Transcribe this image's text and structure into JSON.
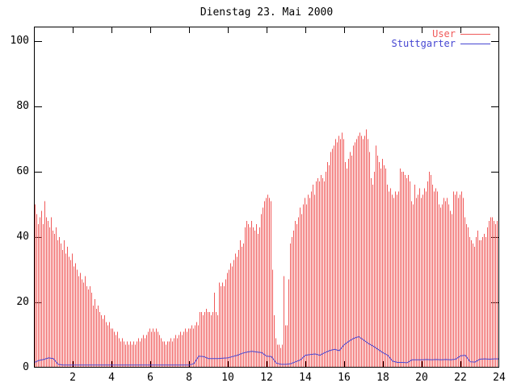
{
  "title": "Dienstag 23. Mai 2000",
  "chart_data": {
    "type": "bar",
    "title": "Dienstag 23. Mai 2000",
    "xlabel": "",
    "ylabel": "",
    "xlim": [
      0,
      24
    ],
    "ylim": [
      0,
      104.4
    ],
    "x_ticks": [
      2,
      4,
      6,
      8,
      10,
      12,
      14,
      16,
      18,
      20,
      22,
      24
    ],
    "y_ticks": [
      0,
      20,
      40,
      60,
      80,
      100
    ],
    "grid": "off",
    "legend_position": "top-right",
    "axis_color": "#000000",
    "background_color": "#ffffff",
    "series": [
      {
        "name": "User",
        "style": "impulses",
        "color": "#f05a5a",
        "interval_minutes": 5,
        "values": [
          50,
          47,
          44,
          46,
          48,
          44,
          51,
          46,
          45,
          43,
          46,
          42,
          41,
          43,
          39,
          40,
          38,
          36,
          39,
          35,
          37,
          34,
          33,
          35,
          31,
          32,
          30,
          28,
          29,
          27,
          26,
          28,
          25,
          24,
          25,
          23,
          19,
          21,
          18,
          19,
          17,
          16,
          15,
          16,
          14,
          13,
          14,
          12,
          12,
          11,
          10,
          11,
          9,
          8,
          9,
          8,
          7,
          8,
          7,
          8,
          7,
          8,
          7,
          8,
          9,
          8,
          9,
          10,
          9,
          10,
          11,
          12,
          11,
          12,
          11,
          12,
          11,
          10,
          9,
          8,
          8,
          7,
          8,
          8,
          9,
          8,
          9,
          10,
          9,
          10,
          11,
          10,
          11,
          12,
          11,
          12,
          12,
          13,
          12,
          13,
          14,
          13,
          17,
          17,
          16,
          17,
          18,
          17,
          17,
          16,
          17,
          23,
          17,
          16,
          26,
          25,
          26,
          25,
          27,
          29,
          30,
          32,
          31,
          33,
          35,
          34,
          36,
          39,
          37,
          38,
          43,
          45,
          44,
          43,
          45,
          43,
          42,
          44,
          41,
          43,
          47,
          49,
          51,
          52,
          53,
          52,
          51,
          30,
          16,
          9,
          7,
          7,
          6,
          7,
          28,
          13,
          13,
          27,
          38,
          40,
          42,
          45,
          44,
          46,
          49,
          47,
          50,
          52,
          50,
          53,
          52,
          54,
          56,
          53,
          57,
          58,
          57,
          59,
          58,
          57,
          60,
          63,
          62,
          66,
          67,
          68,
          70,
          69,
          71,
          70,
          72,
          70,
          63,
          61,
          64,
          66,
          65,
          68,
          69,
          70,
          71,
          72,
          71,
          70,
          71,
          73,
          70,
          66,
          58,
          56,
          60,
          68,
          65,
          63,
          61,
          64,
          62,
          61,
          56,
          54,
          55,
          53,
          52,
          54,
          53,
          54,
          61,
          60,
          60,
          59,
          58,
          59,
          57,
          51,
          50,
          56,
          52,
          53,
          55,
          52,
          53,
          55,
          54,
          57,
          60,
          59,
          56,
          54,
          55,
          54,
          50,
          49,
          50,
          52,
          51,
          52,
          50,
          48,
          47,
          54,
          53,
          54,
          52,
          53,
          54,
          52,
          46,
          44,
          43,
          40,
          39,
          38,
          37,
          40,
          42,
          39,
          39,
          40,
          41,
          40,
          43,
          45,
          46,
          46,
          45,
          44,
          45,
          41
        ]
      },
      {
        "name": "Stuttgarter",
        "style": "line",
        "color": "#4646d2",
        "interval_minutes": 15,
        "values": [
          1.5,
          2.2,
          2.5,
          3.0,
          2.8,
          1.0,
          0.8,
          0.8,
          0.8,
          0.8,
          0.8,
          0.8,
          0.8,
          0.8,
          0.8,
          0.8,
          0.8,
          0.8,
          0.8,
          0.8,
          0.8,
          0.8,
          0.8,
          0.8,
          0.8,
          0.8,
          0.8,
          0.8,
          0.8,
          0.8,
          0.8,
          0.8,
          0.8,
          1.2,
          3.5,
          3.4,
          2.8,
          2.8,
          2.8,
          2.9,
          3.0,
          3.4,
          3.8,
          4.4,
          4.8,
          5.0,
          4.8,
          4.6,
          3.5,
          3.4,
          1.4,
          1.0,
          1.0,
          1.2,
          1.8,
          2.4,
          3.8,
          4.0,
          4.2,
          3.8,
          4.6,
          5.2,
          5.6,
          5.2,
          7.0,
          8.1,
          9.0,
          9.5,
          8.5,
          7.4,
          6.6,
          5.6,
          4.6,
          3.8,
          2.0,
          1.6,
          1.6,
          1.5,
          2.4,
          2.4,
          2.4,
          2.5,
          2.4,
          2.5,
          2.4,
          2.5,
          2.4,
          2.6,
          3.6,
          3.8,
          1.8,
          1.7,
          2.6,
          2.7,
          2.6,
          2.7
        ]
      }
    ]
  }
}
